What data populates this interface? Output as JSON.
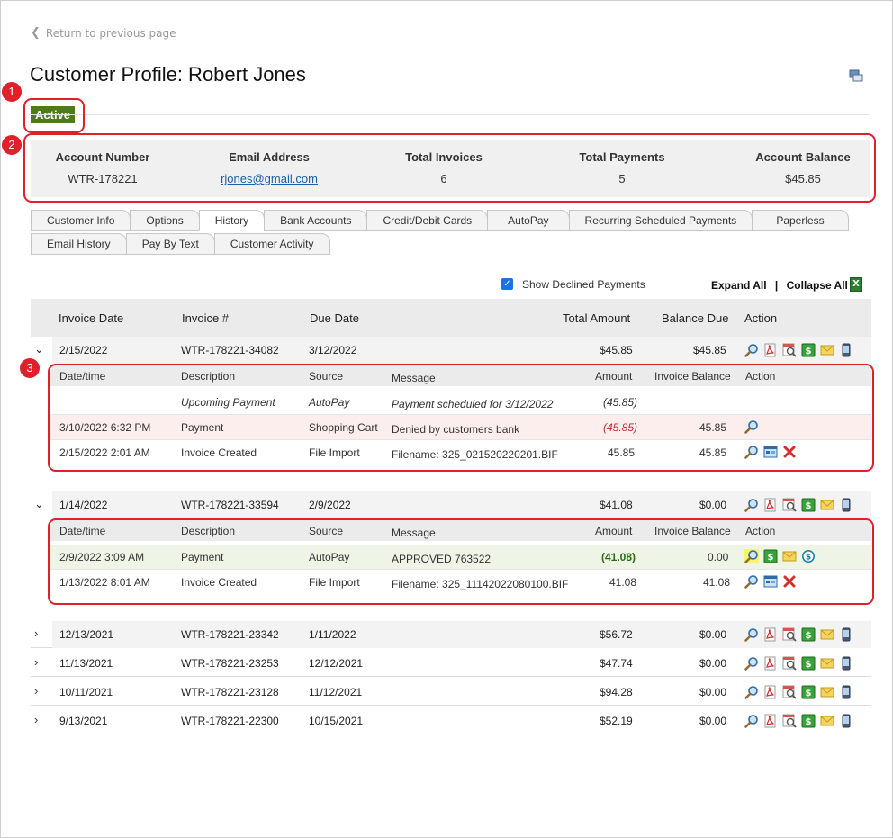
{
  "back_link": "Return to previous page",
  "page_title": "Customer Profile: Robert Jones",
  "status_badge": "Active",
  "callouts": [
    "1",
    "2",
    "3"
  ],
  "summary": {
    "account_number": {
      "label": "Account Number",
      "value": "WTR-178221"
    },
    "email": {
      "label": "Email Address",
      "value": "rjones@gmail.com"
    },
    "total_invoices": {
      "label": "Total Invoices",
      "value": "6"
    },
    "total_payments": {
      "label": "Total Payments",
      "value": "5"
    },
    "account_balance": {
      "label": "Account Balance",
      "value": "$45.85"
    }
  },
  "tabs_row1": [
    "Customer Info",
    "Options",
    "History",
    "Bank Accounts",
    "Credit/Debit Cards",
    "AutoPay",
    "Recurring Scheduled Payments",
    "Paperless"
  ],
  "tabs_row2": [
    "Email History",
    "Pay By Text",
    "Customer Activity"
  ],
  "active_tab": "History",
  "toolbar": {
    "show_declined_label": "Show Declined Payments",
    "show_declined_checked": true,
    "expand_all": "Expand All",
    "collapse_all": "Collapse All",
    "separator": "|"
  },
  "table_headers": {
    "invoice_date": "Invoice Date",
    "invoice_num": "Invoice #",
    "due_date": "Due Date",
    "total_amount": "Total Amount",
    "balance_due": "Balance Due",
    "action": "Action"
  },
  "detail_headers": {
    "datetime": "Date/time",
    "description": "Description",
    "source": "Source",
    "message": "Message",
    "amount": "Amount",
    "invoice_balance": "Invoice Balance",
    "action": "Action"
  },
  "invoices": [
    {
      "date": "2/15/2022",
      "number": "WTR-178221-34082",
      "due": "3/12/2022",
      "total": "$45.85",
      "balance": "$45.85",
      "expanded": true,
      "details": [
        {
          "datetime": "",
          "description": "Upcoming Payment",
          "source": "AutoPay",
          "message": "Payment scheduled for 3/12/2022",
          "amount": "(45.85)",
          "invoice_balance": ""
        },
        {
          "datetime": "3/10/2022 6:32 PM",
          "description": "Payment",
          "source": "Shopping Cart",
          "message": "Denied by customers bank",
          "amount": "(45.85)",
          "invoice_balance": "45.85"
        },
        {
          "datetime": "2/15/2022 2:01 AM",
          "description": "Invoice Created",
          "source": "File Import",
          "message": "Filename: 325_021520220201.BIF",
          "amount": "45.85",
          "invoice_balance": "45.85"
        }
      ]
    },
    {
      "date": "1/14/2022",
      "number": "WTR-178221-33594",
      "due": "2/9/2022",
      "total": "$41.08",
      "balance": "$0.00",
      "expanded": true,
      "details": [
        {
          "datetime": "2/9/2022 3:09 AM",
          "description": "Payment",
          "source": "AutoPay",
          "message": "APPROVED 763522",
          "amount": "(41.08)",
          "invoice_balance": "0.00"
        },
        {
          "datetime": "1/13/2022 8:01 AM",
          "description": "Invoice Created",
          "source": "File Import",
          "message": "Filename: 325_11142022080100.BIF",
          "amount": "41.08",
          "invoice_balance": "41.08"
        }
      ]
    },
    {
      "date": "12/13/2021",
      "number": "WTR-178221-23342",
      "due": "1/11/2022",
      "total": "$56.72",
      "balance": "$0.00",
      "expanded": false
    },
    {
      "date": "11/13/2021",
      "number": "WTR-178221-23253",
      "due": "12/12/2021",
      "total": "$47.74",
      "balance": "$0.00",
      "expanded": false
    },
    {
      "date": "10/11/2021",
      "number": "WTR-178221-23128",
      "due": "11/12/2021",
      "total": "$94.28",
      "balance": "$0.00",
      "expanded": false
    },
    {
      "date": "9/13/2021",
      "number": "WTR-178221-22300",
      "due": "10/15/2021",
      "total": "$52.19",
      "balance": "$0.00",
      "expanded": false
    }
  ],
  "icons": {
    "print": "print-icon",
    "excel": "excel-export-icon",
    "view": "magnifier-icon",
    "pdf": "pdf-icon",
    "preview": "pdf-preview-icon",
    "pay": "dollar-payment-icon",
    "email": "envelope-icon",
    "text": "mobile-phone-icon",
    "edit": "edit-invoice-icon",
    "delete": "delete-x-icon",
    "refund": "refund-icon"
  },
  "colors": {
    "status_active": "#4d7a1a",
    "callout_red": "#e0202a",
    "link_blue": "#1a5fa8",
    "declined_row": "#fdeeee",
    "approved_row": "#eef4e6"
  }
}
